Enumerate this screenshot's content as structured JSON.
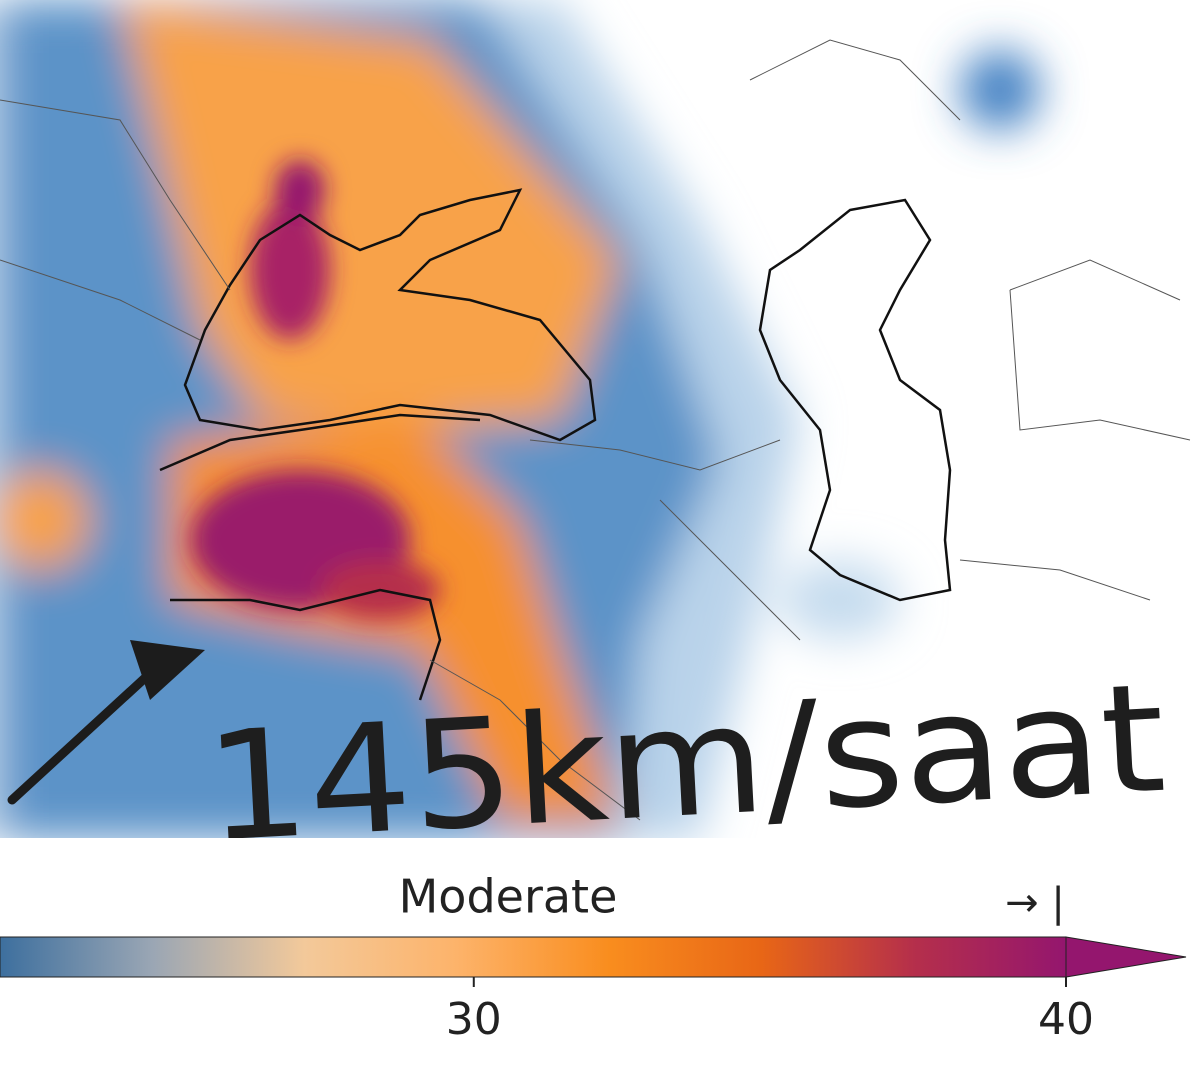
{
  "map": {
    "annotation": "145km/saat"
  },
  "colorbar": {
    "label": "Moderate",
    "marker": "→ |",
    "lim": [
      22,
      40
    ],
    "ticks": [
      30,
      40
    ],
    "extend": "max",
    "colors": [
      "#3d6f9e",
      "#9aa6b4",
      "#f3c99a",
      "#fdb36a",
      "#f98d1e",
      "#e86616",
      "#b52f4b",
      "#94166e"
    ]
  }
}
